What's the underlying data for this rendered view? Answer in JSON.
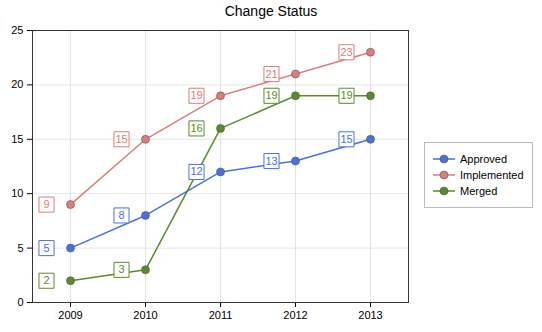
{
  "chart_data": {
    "type": "line",
    "title": "Change Status",
    "categories": [
      "2009",
      "2010",
      "2011",
      "2012",
      "2013"
    ],
    "series": [
      {
        "name": "Approved",
        "color": "#4a6fe0",
        "values": [
          5,
          8,
          12,
          13,
          15
        ]
      },
      {
        "name": "Implemented",
        "color": "#e07b7b",
        "values": [
          9,
          15,
          19,
          21,
          23
        ]
      },
      {
        "name": "Merged",
        "color": "#5a8a2a",
        "values": [
          2,
          3,
          16,
          19,
          19
        ]
      }
    ],
    "ylim": [
      0,
      25
    ],
    "yticks": [
      0,
      5,
      10,
      15,
      20,
      25
    ],
    "grid": true,
    "legend": "right",
    "data_labels": true,
    "marker": "circle"
  }
}
